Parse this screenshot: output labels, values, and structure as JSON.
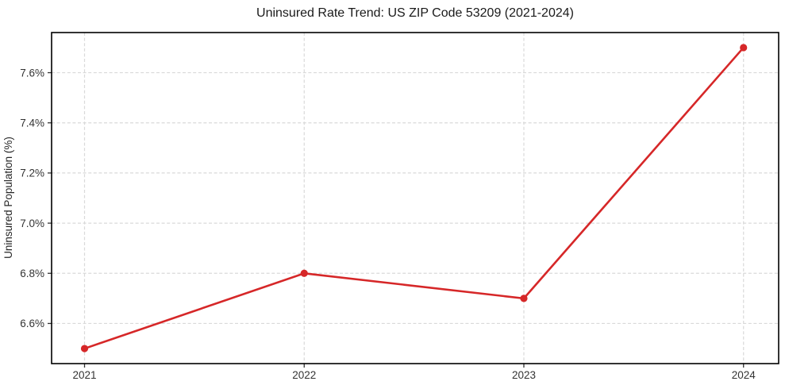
{
  "chart_data": {
    "type": "line",
    "title": "Uninsured Rate Trend: US ZIP Code 53209 (2021-2024)",
    "xlabel": "",
    "ylabel": "Uninsured Population (%)",
    "x": [
      2021,
      2022,
      2023,
      2024
    ],
    "x_tick_labels": [
      "2021",
      "2022",
      "2023",
      "2024"
    ],
    "series": [
      {
        "name": "Uninsured Population (%)",
        "values": [
          6.5,
          6.8,
          6.7,
          7.7
        ]
      }
    ],
    "y_ticks": [
      6.6,
      6.8,
      7.0,
      7.2,
      7.4,
      7.6
    ],
    "y_tick_labels": [
      "6.6%",
      "6.8%",
      "7.0%",
      "7.2%",
      "7.4%",
      "7.6%"
    ],
    "xlim": [
      2020.85,
      2024.16
    ],
    "ylim": [
      6.44,
      7.76
    ],
    "grid": true,
    "grid_style": "dashed",
    "legend": false
  },
  "style": {
    "line_color": "#d62728",
    "marker_color": "#d62728",
    "grid_color": "#d9d9d9",
    "spine_color": "#000000",
    "tick_color": "#333333",
    "background": "#ffffff"
  }
}
